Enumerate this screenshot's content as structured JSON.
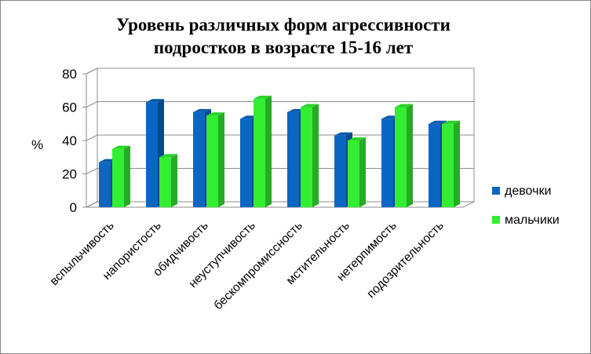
{
  "chart_data": {
    "type": "bar",
    "title_lines": [
      "Уровень различных форм агрессивности",
      "подростков в возрасте 15-16 лет"
    ],
    "ylabel": "%",
    "ylim": [
      0,
      80
    ],
    "yticks": [
      "0",
      "20",
      "40",
      "60",
      "80"
    ],
    "grid": true,
    "legend_position": "right",
    "categories": [
      "вспыльчивость",
      "напористость",
      "обидчивость",
      "неуступчивость",
      "бескомпромиссность",
      "мстительность",
      "нетерпимость",
      "подозрительность"
    ],
    "series": [
      {
        "name": "девочки",
        "color": "#0a66c2",
        "values": [
          27,
          63,
          57,
          53,
          57,
          43,
          53,
          50
        ]
      },
      {
        "name": "мальчики",
        "color": "#33ee33",
        "values": [
          35,
          30,
          55,
          65,
          60,
          40,
          60,
          50
        ]
      }
    ]
  }
}
